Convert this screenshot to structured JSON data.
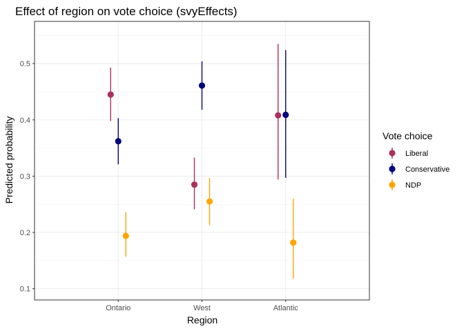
{
  "chart_data": {
    "type": "scatter",
    "title": "Effect of region on vote choice (svyEffects)",
    "xlabel": "Region",
    "ylabel": "Predicted probability",
    "categories": [
      "Ontario",
      "West",
      "Atlantic"
    ],
    "ylim": [
      0.08,
      0.575
    ],
    "yticks": [
      0.1,
      0.2,
      0.3,
      0.4,
      0.5
    ],
    "ytick_labels": [
      "0.1",
      "0.2",
      "0.3",
      "0.4",
      "0.5"
    ],
    "grid": true,
    "legend": {
      "title": "Vote choice",
      "position": "right"
    },
    "series": [
      {
        "name": "Liberal",
        "color": "#A8325E",
        "values": [
          0.445,
          0.285,
          0.408
        ],
        "lower": [
          0.398,
          0.241,
          0.294
        ],
        "upper": [
          0.493,
          0.333,
          0.535
        ]
      },
      {
        "name": "Conservative",
        "color": "#00007F",
        "values": [
          0.362,
          0.461,
          0.409
        ],
        "lower": [
          0.321,
          0.418,
          0.297
        ],
        "upper": [
          0.403,
          0.504,
          0.524
        ]
      },
      {
        "name": "NDP",
        "color": "#FFA500",
        "values": [
          0.194,
          0.255,
          0.182
        ],
        "lower": [
          0.157,
          0.213,
          0.118
        ],
        "upper": [
          0.236,
          0.297,
          0.26
        ]
      }
    ]
  }
}
